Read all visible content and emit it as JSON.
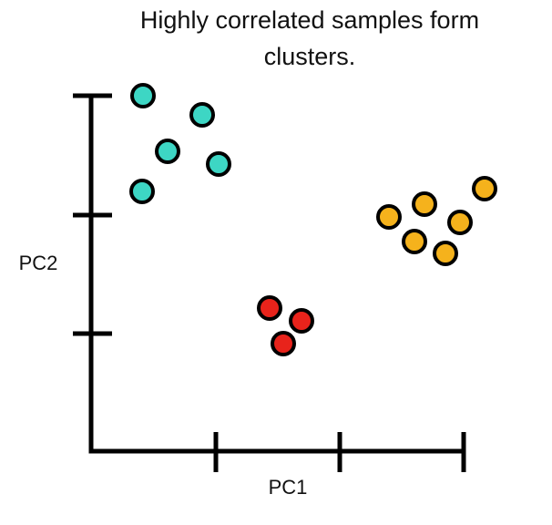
{
  "title": "Highly correlated samples form clusters.",
  "x_axis_label": "PC1",
  "y_axis_label": "PC2"
}
